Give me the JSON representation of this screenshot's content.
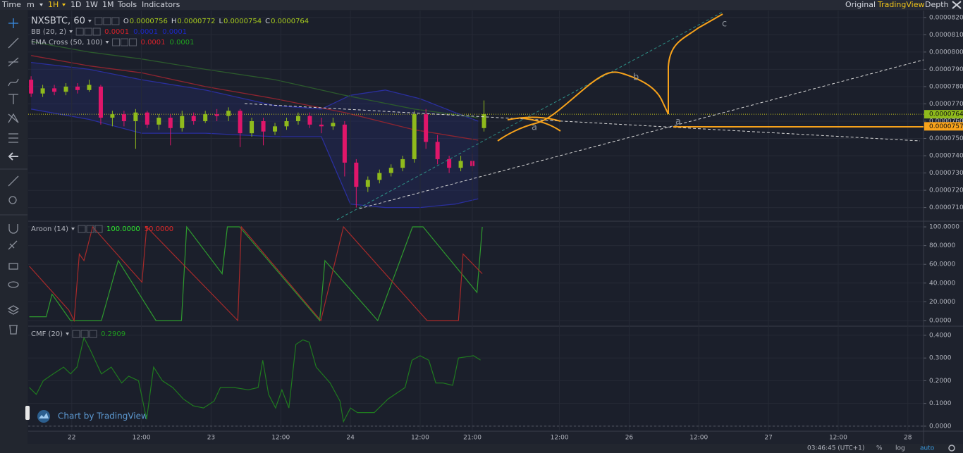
{
  "toolbar": {
    "left": [
      "Time",
      "m",
      "1H",
      "1D",
      "1W",
      "1M",
      "Tools",
      "Indicators"
    ],
    "right": [
      "Original",
      "TradingView",
      "Depth"
    ]
  },
  "status_bar": {
    "clock": "03:46:45 (UTC+1)",
    "buttons": [
      "%",
      "log",
      "auto"
    ]
  },
  "watermark": "Chart by TradingView",
  "chart_data": [
    {
      "type": "candlestick",
      "title": "NXSBTC, 60",
      "ohlc_header": [
        {
          "key": "O",
          "text": "0.0000756"
        },
        {
          "key": "H",
          "text": "0.0000772"
        },
        {
          "key": "L",
          "text": "0.0000754"
        },
        {
          "key": "C",
          "text": "0.0000764"
        }
      ],
      "up_color": "#8fba1c",
      "down_color": "#e0166a",
      "x": [
        -7,
        -5,
        -3,
        -1,
        1,
        3,
        5,
        7,
        9,
        11,
        13,
        15,
        17,
        19,
        21,
        23,
        25,
        27,
        29,
        31,
        33,
        35,
        37,
        39,
        41,
        43,
        45,
        47,
        49,
        51,
        53,
        55,
        57,
        59,
        61,
        63,
        65,
        67,
        69,
        71
      ],
      "open": [
        7.84e-05,
        7.76e-05,
        7.79e-05,
        7.77e-05,
        7.8e-05,
        7.78e-05,
        7.8e-05,
        7.62e-05,
        7.64e-05,
        7.6e-05,
        7.65e-05,
        7.58e-05,
        7.62e-05,
        7.56e-05,
        7.63e-05,
        7.6e-05,
        7.64e-05,
        7.63e-05,
        7.66e-05,
        7.53e-05,
        7.6e-05,
        7.54e-05,
        7.57e-05,
        7.6e-05,
        7.63e-05,
        7.58e-05,
        7.57e-05,
        7.58e-05,
        7.36e-05,
        7.22e-05,
        7.26e-05,
        7.3e-05,
        7.33e-05,
        7.38e-05,
        7.64e-05,
        7.48e-05,
        7.38e-05,
        7.33e-05,
        7.37e-05,
        7.56e-05
      ],
      "high": [
        7.86e-05,
        7.81e-05,
        7.81e-05,
        7.82e-05,
        7.82e-05,
        7.84e-05,
        7.81e-05,
        7.66e-05,
        7.66e-05,
        7.67e-05,
        7.66e-05,
        7.64e-05,
        7.64e-05,
        7.66e-05,
        7.65e-05,
        7.66e-05,
        7.67e-05,
        7.68e-05,
        7.67e-05,
        7.62e-05,
        7.62e-05,
        7.59e-05,
        7.62e-05,
        7.65e-05,
        7.65e-05,
        7.62e-05,
        7.62e-05,
        7.6e-05,
        7.38e-05,
        7.28e-05,
        7.32e-05,
        7.35e-05,
        7.4e-05,
        7.66e-05,
        7.67e-05,
        7.52e-05,
        7.4e-05,
        7.4e-05,
        7.41e-05,
        7.72e-05
      ],
      "low": [
        7.74e-05,
        7.74e-05,
        7.75e-05,
        7.75e-05,
        7.76e-05,
        7.77e-05,
        7.58e-05,
        7.57e-05,
        7.57e-05,
        7.44e-05,
        7.56e-05,
        7.55e-05,
        7.46e-05,
        7.54e-05,
        7.58e-05,
        7.59e-05,
        7.6e-05,
        7.6e-05,
        7.45e-05,
        7.51e-05,
        7.46e-05,
        7.52e-05,
        7.55e-05,
        7.58e-05,
        7.56e-05,
        7.53e-05,
        7.55e-05,
        7.28e-05,
        7.1e-05,
        7.19e-05,
        7.24e-05,
        7.28e-05,
        7.31e-05,
        7.36e-05,
        7.44e-05,
        7.35e-05,
        7.3e-05,
        7.31e-05,
        7.31e-05,
        7.54e-05
      ],
      "close": [
        7.76e-05,
        7.79e-05,
        7.77e-05,
        7.8e-05,
        7.78e-05,
        7.81e-05,
        7.62e-05,
        7.64e-05,
        7.6e-05,
        7.65e-05,
        7.58e-05,
        7.62e-05,
        7.56e-05,
        7.63e-05,
        7.6e-05,
        7.64e-05,
        7.63e-05,
        7.66e-05,
        7.53e-05,
        7.6e-05,
        7.54e-05,
        7.57e-05,
        7.6e-05,
        7.63e-05,
        7.58e-05,
        7.57e-05,
        7.59e-05,
        7.36e-05,
        7.22e-05,
        7.26e-05,
        7.3e-05,
        7.33e-05,
        7.38e-05,
        7.64e-05,
        7.48e-05,
        7.38e-05,
        7.33e-05,
        7.37e-05,
        7.34e-05,
        7.64e-05
      ],
      "indicators": [
        {
          "label": "BB (20, 2)",
          "readouts": [
            {
              "text": "0.0001",
              "color": "#d3222a"
            },
            {
              "text": "0.0001",
              "color": "#1c27c4"
            },
            {
              "text": "0.0001",
              "color": "#1c27c4"
            }
          ],
          "fill": "rgba(40,48,150,0.22)",
          "lines": [
            {
              "color": "#2a2f9e",
              "x": [
                -7,
                3,
                12,
                23,
                35,
                43,
                48,
                54,
                60,
                66,
                70
              ],
              "values": [
                7.94e-05,
                7.9e-05,
                7.84e-05,
                7.78e-05,
                7.69e-05,
                7.67e-05,
                7.75e-05,
                7.78e-05,
                7.73e-05,
                7.65e-05,
                7.6e-05
              ]
            },
            {
              "color": "#2a2f9e",
              "x": [
                -7,
                3,
                12,
                23,
                35,
                43,
                48,
                54,
                60,
                66,
                70
              ],
              "values": [
                7.67e-05,
                7.61e-05,
                7.53e-05,
                7.53e-05,
                7.51e-05,
                7.51e-05,
                7.12e-05,
                7.1e-05,
                7.1e-05,
                7.12e-05,
                7.15e-05
              ]
            }
          ]
        },
        {
          "label": "EMA Cross (50, 100)",
          "readouts": [
            {
              "text": "0.0001",
              "color": "#d3222a"
            },
            {
              "text": "0.0001",
              "color": "#20a020"
            }
          ],
          "lines": [
            {
              "color": "#8e2430",
              "x": [
                -7,
                3,
                12,
                23,
                35,
                47,
                59,
                70
              ],
              "values": [
                7.98e-05,
                7.92e-05,
                7.88e-05,
                7.8e-05,
                7.73e-05,
                7.65e-05,
                7.55e-05,
                7.49e-05
              ]
            },
            {
              "color": "#2c5a2c",
              "x": [
                -7,
                3,
                12,
                23,
                35,
                47,
                59,
                70
              ],
              "values": [
                8.06e-05,
                8e-05,
                7.96e-05,
                7.9e-05,
                7.84e-05,
                7.75e-05,
                7.67e-05,
                7.62e-05
              ]
            }
          ]
        }
      ],
      "price_markers": [
        {
          "value": 7.64e-05,
          "label": "0.0000764",
          "color": "#8fba1c",
          "guide_line": true
        },
        {
          "value": 7.57e-05,
          "label": "0.0000757",
          "color": "#f7a21b",
          "guide_line": false
        }
      ],
      "annotations": [
        "a",
        "a",
        "b",
        "c"
      ],
      "xlim": [
        -7.5,
        146.7
      ],
      "ylim": [
        7.025e-05,
        8.24e-05
      ],
      "yticks": [
        {
          "value": 8.2e-05,
          "label": "0.0000820"
        },
        {
          "value": 8.1e-05,
          "label": "0.0000810"
        },
        {
          "value": 8e-05,
          "label": "0.0000800"
        },
        {
          "value": 7.9e-05,
          "label": "0.0000790"
        },
        {
          "value": 7.8e-05,
          "label": "0.0000780"
        },
        {
          "value": 7.7e-05,
          "label": "0.0000770"
        },
        {
          "value": 7.6e-05,
          "label": "0.0000760"
        },
        {
          "value": 7.5e-05,
          "label": "0.0000750"
        },
        {
          "value": 7.4e-05,
          "label": "0.0000740"
        },
        {
          "value": 7.3e-05,
          "label": "0.0000730"
        },
        {
          "value": 7.2e-05,
          "label": "0.0000720"
        },
        {
          "value": 7.1e-05,
          "label": "0.0000710"
        }
      ],
      "grid": true
    },
    {
      "type": "line",
      "title": "Aroon (14)",
      "readouts": [
        {
          "text": "100.0000",
          "color": "#2ee62e"
        },
        {
          "text": "50.0000",
          "color": "#e02828"
        }
      ],
      "series": [
        {
          "color": "#2e9a2e",
          "x": [
            -7.3,
            -4.4,
            -3.4,
            -0.2,
            5.1,
            8,
            14.5,
            18.9,
            19.8,
            25.9,
            26.8,
            28.9,
            42.7,
            43.6,
            52.7,
            58.7,
            60.5,
            69.8,
            70.7
          ],
          "values": [
            4,
            4,
            28,
            0,
            0,
            64,
            0,
            0,
            100,
            50,
            100,
            100,
            0,
            64,
            0,
            100,
            100,
            30,
            100
          ]
        },
        {
          "color": "#a82a2a",
          "x": [
            -7.3,
            -0.5,
            0.4,
            1.3,
            2.1,
            3.6,
            12.1,
            12.9,
            28.6,
            29.2,
            42.9,
            46.8,
            61.2,
            66.6,
            67.4,
            70.7
          ],
          "values": [
            58,
            11,
            0,
            71,
            64,
            100,
            41,
            100,
            0,
            100,
            0,
            100,
            0,
            0,
            71,
            50
          ]
        }
      ],
      "xlim": [
        -7.5,
        146.7
      ],
      "ylim": [
        -5.3,
        105.3
      ],
      "yticks": [
        {
          "value": 100,
          "label": "100.0000"
        },
        {
          "value": 80,
          "label": "80.0000"
        },
        {
          "value": 60,
          "label": "60.0000"
        },
        {
          "value": 40,
          "label": "40.0000"
        },
        {
          "value": 20,
          "label": "20.0000"
        },
        {
          "value": 0,
          "label": "0.0000"
        }
      ],
      "grid": true
    },
    {
      "type": "line",
      "title": "CMF (20)",
      "readouts": [
        {
          "text": "0.2909",
          "color": "#1f9a1f"
        }
      ],
      "series": [
        {
          "color": "#1f7a1f",
          "x": [
            -7.3,
            -6.1,
            -4.9,
            -3.2,
            -1.4,
            -0.2,
            0.9,
            2.1,
            3.3,
            5.1,
            6.8,
            8.6,
            9.8,
            11.5,
            12.9,
            14.1,
            15.6,
            17.4,
            19.2,
            20.9,
            22.7,
            24.5,
            25.6,
            28,
            30.4,
            32.1,
            32.9,
            33.9,
            35.1,
            36.2,
            37.4,
            38.6,
            39.8,
            40.9,
            42.1,
            44.5,
            46.2,
            46.8,
            48,
            49.2,
            52.1,
            54.5,
            57.4,
            58.6,
            60,
            61.5,
            62.7,
            63.9,
            65.6,
            66.6,
            69.2,
            70.4
          ],
          "values": [
            0.17,
            0.14,
            0.2,
            0.23,
            0.26,
            0.23,
            0.26,
            0.39,
            0.33,
            0.23,
            0.26,
            0.19,
            0.22,
            0.2,
            0.03,
            0.26,
            0.2,
            0.17,
            0.12,
            0.09,
            0.08,
            0.11,
            0.17,
            0.17,
            0.16,
            0.17,
            0.29,
            0.14,
            0.08,
            0.16,
            0.08,
            0.36,
            0.38,
            0.37,
            0.26,
            0.19,
            0.11,
            0.02,
            0.08,
            0.06,
            0.06,
            0.12,
            0.17,
            0.29,
            0.31,
            0.29,
            0.19,
            0.19,
            0.18,
            0.3,
            0.31,
            0.2909
          ]
        }
      ],
      "zero_line": true,
      "xlim": [
        -7.5,
        146.7
      ],
      "ylim": [
        -0.022,
        0.437
      ],
      "yticks": [
        {
          "value": 0.4,
          "label": "0.4000"
        },
        {
          "value": 0.3,
          "label": "0.3000"
        },
        {
          "value": 0.2,
          "label": "0.2000"
        },
        {
          "value": 0.1,
          "label": "0.1000"
        },
        {
          "value": 0,
          "label": "0.0000"
        }
      ],
      "xticks": [
        {
          "value": 0,
          "label": "22"
        },
        {
          "value": 12,
          "label": "12:00"
        },
        {
          "value": 24,
          "label": "23"
        },
        {
          "value": 36,
          "label": "12:00"
        },
        {
          "value": 48,
          "label": "24"
        },
        {
          "value": 60,
          "label": "12:00"
        },
        {
          "value": 69,
          "label": "21:00"
        },
        {
          "value": 84,
          "label": "12:00"
        },
        {
          "value": 96,
          "label": "26"
        },
        {
          "value": 108,
          "label": "12:00"
        },
        {
          "value": 120,
          "label": "27"
        },
        {
          "value": 132,
          "label": "12:00"
        },
        {
          "value": 144,
          "label": "28"
        }
      ],
      "grid": true
    }
  ]
}
